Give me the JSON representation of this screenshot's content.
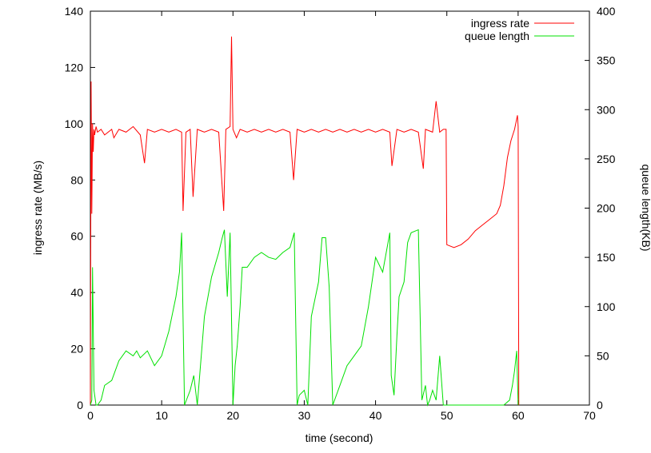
{
  "chart_data": {
    "type": "line",
    "title": "",
    "xlabel": "time (second)",
    "ylabel": "ingress rate (MB/s)",
    "y2label": "queue length(KB)",
    "xlim": [
      0,
      70
    ],
    "ylim": [
      0,
      140
    ],
    "y2lim": [
      0,
      400
    ],
    "xticks": [
      0,
      10,
      20,
      30,
      40,
      50,
      60,
      70
    ],
    "yticks": [
      0,
      20,
      40,
      60,
      80,
      100,
      120,
      140
    ],
    "y2ticks": [
      0,
      50,
      100,
      150,
      200,
      250,
      300,
      350,
      400
    ],
    "grid": false,
    "legend": "top-right",
    "series": [
      {
        "name": "ingress rate",
        "axis": "left",
        "color": "#ff0000",
        "x": [
          0,
          0.1,
          0.2,
          0.3,
          0.4,
          0.5,
          0.6,
          0.8,
          1.0,
          1.5,
          2.0,
          3.0,
          3.3,
          4.0,
          5.0,
          6.0,
          7.0,
          7.6,
          8.0,
          9.0,
          10.0,
          11.0,
          12.0,
          12.8,
          13.0,
          13.4,
          14.0,
          14.4,
          15.0,
          16.0,
          17.0,
          18.0,
          18.7,
          19.0,
          19.6,
          19.8,
          20.0,
          20.5,
          21.0,
          22.0,
          23.0,
          24.0,
          25.0,
          26.0,
          27.0,
          28.0,
          28.5,
          29.0,
          30.0,
          31.0,
          32.0,
          33.0,
          34.0,
          35.0,
          36.0,
          37.0,
          38.0,
          39.0,
          40.0,
          41.0,
          42.0,
          42.3,
          43.0,
          44.0,
          45.0,
          46.0,
          46.7,
          47.0,
          48.0,
          48.5,
          49.0,
          49.5,
          49.9,
          50.0,
          51.0,
          52.0,
          53.0,
          54.0,
          55.0,
          56.0,
          57.0,
          57.5,
          58.0,
          58.5,
          59.0,
          59.5,
          59.9,
          60.0,
          60.1
        ],
        "values": [
          0,
          115,
          68,
          100,
          90,
          98,
          96,
          99,
          97,
          98,
          96,
          98,
          95,
          98,
          97,
          99,
          96,
          86,
          98,
          97,
          98,
          97,
          98,
          97,
          69,
          97,
          98,
          74,
          98,
          97,
          98,
          97,
          69,
          98,
          99,
          131,
          98,
          95,
          98,
          97,
          98,
          97,
          98,
          97,
          98,
          97,
          80,
          98,
          97,
          98,
          97,
          98,
          97,
          98,
          97,
          98,
          97,
          98,
          97,
          98,
          97,
          85,
          98,
          97,
          98,
          97,
          84,
          98,
          97,
          108,
          97,
          98,
          98,
          57,
          56,
          57,
          59,
          62,
          64,
          66,
          68,
          71,
          78,
          88,
          94,
          98,
          103,
          99,
          0
        ]
      },
      {
        "name": "queue length",
        "axis": "right",
        "color": "#00e000",
        "x": [
          0,
          0.2,
          0.3,
          0.5,
          0.8,
          1.0,
          1.5,
          2.0,
          3.0,
          4.0,
          5.0,
          6.0,
          6.5,
          7.0,
          8.0,
          9.0,
          10.0,
          11.0,
          12.0,
          12.5,
          12.8,
          13.2,
          14.0,
          14.5,
          15.0,
          16.0,
          17.0,
          18.0,
          18.5,
          18.8,
          19.2,
          19.6,
          20.0,
          20.3,
          20.6,
          21.0,
          21.3,
          22.0,
          23.0,
          24.0,
          25.0,
          26.0,
          27.0,
          28.0,
          28.6,
          29.0,
          29.3,
          30.0,
          30.5,
          31.0,
          32.0,
          32.5,
          33.0,
          33.5,
          34.0,
          35.0,
          36.0,
          37.0,
          38.0,
          39.0,
          40.0,
          41.0,
          42.0,
          42.2,
          42.6,
          43.0,
          43.3,
          44.0,
          44.5,
          45.0,
          46.0,
          46.5,
          47.0,
          47.3,
          47.6,
          48.0,
          48.5,
          49.0,
          49.5,
          50.0,
          52.0,
          55.0,
          58.0,
          58.8,
          59.2,
          59.5,
          59.8,
          60.0
        ],
        "values": [
          0,
          5,
          140,
          15,
          0,
          0,
          5,
          20,
          25,
          45,
          55,
          50,
          55,
          48,
          55,
          40,
          50,
          75,
          110,
          135,
          175,
          0,
          15,
          30,
          0,
          90,
          130,
          155,
          170,
          178,
          110,
          175,
          0,
          40,
          60,
          100,
          140,
          140,
          150,
          155,
          150,
          148,
          155,
          160,
          175,
          0,
          10,
          15,
          0,
          90,
          125,
          170,
          170,
          120,
          0,
          20,
          40,
          50,
          60,
          100,
          150,
          135,
          175,
          30,
          10,
          70,
          110,
          125,
          165,
          175,
          178,
          5,
          20,
          0,
          5,
          15,
          5,
          50,
          0,
          0,
          0,
          0,
          0,
          5,
          20,
          35,
          55,
          0
        ]
      }
    ]
  }
}
